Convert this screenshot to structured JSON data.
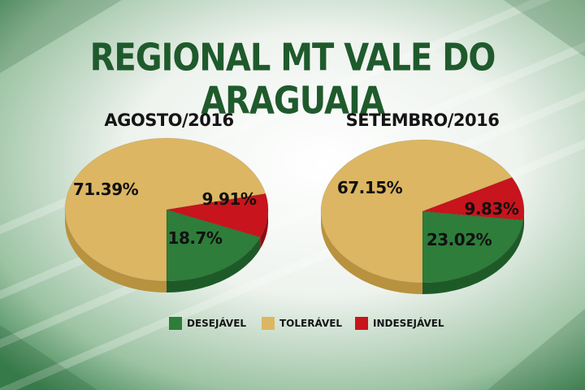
{
  "title": "REGIONAL MT VALE DO ARAGUAIA",
  "colors": {
    "desejavel": "#2e7d3a",
    "desejavel_dark": "#1e5a28",
    "toleravel": "#dcb663",
    "toleravel_dark": "#b8923f",
    "indesejavel": "#c8141c",
    "indesejavel_dark": "#8e0d12"
  },
  "legend": [
    {
      "label": "DESEJÁVEL",
      "color": "#2e7d3a"
    },
    {
      "label": "TOLERÁVEL",
      "color": "#dcb663"
    },
    {
      "label": "INDESEJÁVEL",
      "color": "#c8141c"
    }
  ],
  "chart_data": [
    {
      "type": "pie",
      "title": "AGOSTO/2016",
      "slices": [
        {
          "label": "DESEJÁVEL",
          "value": 18.7,
          "text": "18.7%"
        },
        {
          "label": "INDESEJÁVEL",
          "value": 9.91,
          "text": "9.91%"
        },
        {
          "label": "TOLERÁVEL",
          "value": 71.39,
          "text": "71.39%"
        }
      ]
    },
    {
      "type": "pie",
      "title": "SETEMBRO/2016",
      "slices": [
        {
          "label": "DESEJÁVEL",
          "value": 23.02,
          "text": "23.02%"
        },
        {
          "label": "INDESEJÁVEL",
          "value": 9.83,
          "text": "9.83%"
        },
        {
          "label": "TOLERÁVEL",
          "value": 67.15,
          "text": "67.15%"
        }
      ]
    }
  ]
}
